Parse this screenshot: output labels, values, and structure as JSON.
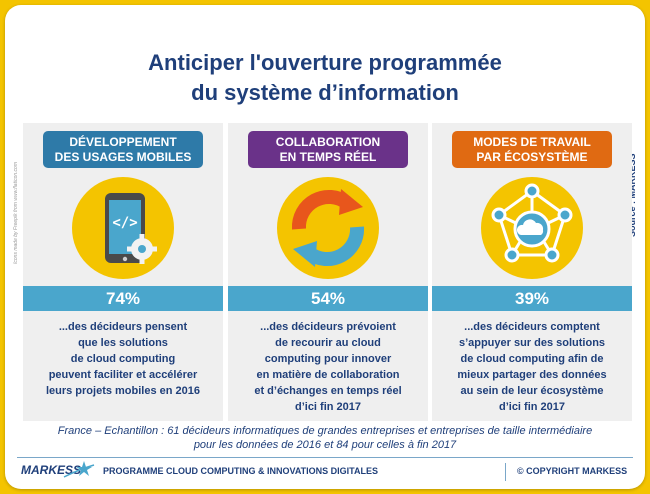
{
  "title": {
    "line1": "Anticiper l'ouverture programmée",
    "line2": "du système d’information"
  },
  "credit_vertical": "Icons made by Freepik from www.flaticon.com",
  "source_vertical": "Source : MARKESS",
  "columns": [
    {
      "badge_line1": "DÉVELOPPEMENT",
      "badge_line2": "DES USAGES MOBILES",
      "percent": "74%",
      "icon": "tablet-code-icon",
      "text": "...des décideurs pensent\nque les solutions\nde cloud computing\npeuvent faciliter et accélérer\nleurs projets mobiles en 2016"
    },
    {
      "badge_line1": "COLLABORATION",
      "badge_line2": "EN TEMPS RÉEL",
      "percent": "54%",
      "icon": "sync-arrows-icon",
      "text": "...des décideurs prévoient\nde recourir au cloud\ncomputing pour innover\nen matière de collaboration\net d’échanges en temps réel\nd’ici fin 2017"
    },
    {
      "badge_line1": "MODES DE TRAVAIL",
      "badge_line2": "PAR ÉCOSYSTÈME",
      "percent": "39%",
      "icon": "cloud-network-icon",
      "text": "...des décideurs comptent\ns’appuyer sur des solutions\nde cloud computing afin de\nmieux partager des données\nau sein de leur écosystème\nd’ici fin 2017"
    }
  ],
  "footnote": "France – Echantillon : 61 décideurs informatiques de grandes entreprises et entreprises de taille intermédiaire\npour les données de 2016 et 84 pour  celles à fin 2017",
  "footer": {
    "logo": "MARKESS",
    "program": "PROGRAMME CLOUD COMPUTING & INNOVATIONS DIGITALES",
    "copyright": "© COPYRIGHT MARKESS"
  },
  "colors": {
    "frame": "#f4c400",
    "title": "#1f3f7a",
    "badge_mobile": "#2e7aa8",
    "badge_collab": "#6a3289",
    "badge_eco": "#e06a12",
    "percent_bar": "#4aa6cc"
  }
}
